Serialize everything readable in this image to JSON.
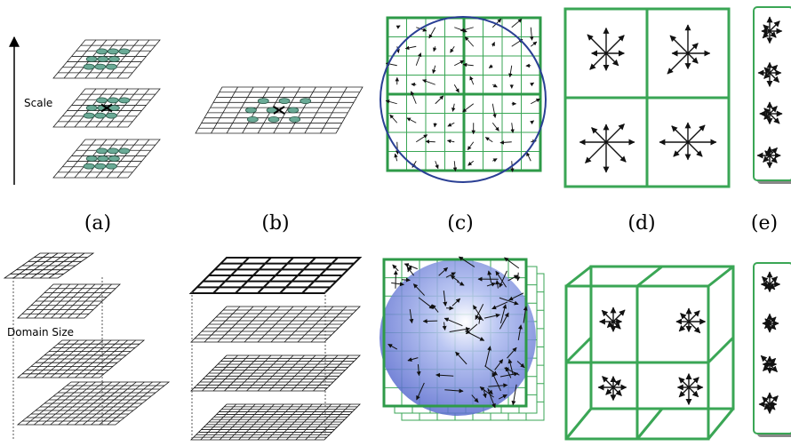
{
  "figure": {
    "scale_label": "Scale",
    "domain_size_label": "Domain Size",
    "captions": [
      "(a)",
      "(b)",
      "(c)",
      "(d)",
      "(e)"
    ]
  }
}
